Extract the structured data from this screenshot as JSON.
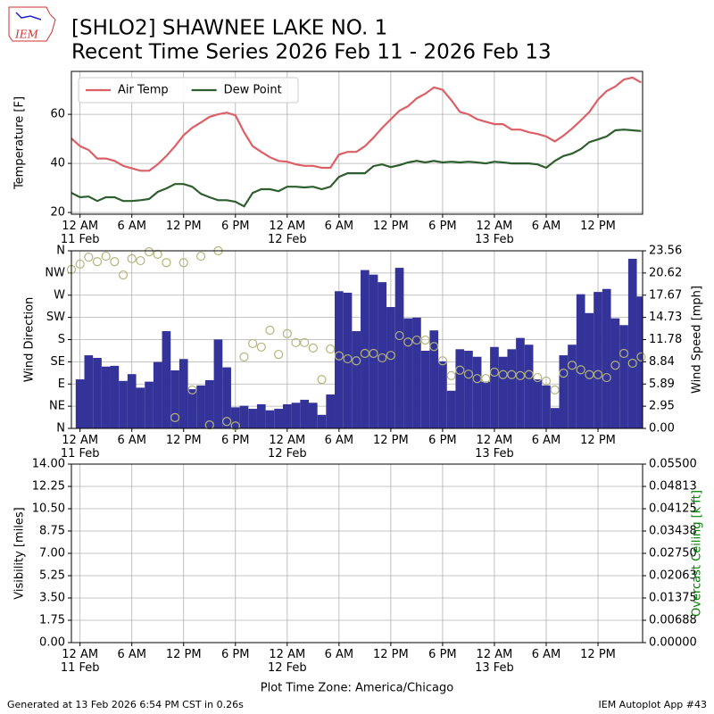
{
  "header": {
    "logo_text": "IEM",
    "title": "[SHLO2] SHAWNEE LAKE NO. 1",
    "subtitle": "Recent Time Series 2026 Feb 11 - 2026 Feb 13"
  },
  "footer": {
    "generated": "Generated at 13 Feb 2026 6:54 PM CST in 0.26s",
    "app": "IEM Autoplot App #43"
  },
  "chart_data": [
    {
      "type": "line",
      "ylabel": "Temperature [F]",
      "grid": true,
      "legend": "upper left",
      "xlim": [
        "10 Feb 23:00",
        "13 Feb 17:10"
      ],
      "xticks": [
        {
          "value": "11 Feb 00:00",
          "label": "12 AM\n11 Feb"
        },
        {
          "value": "11 Feb 06:00",
          "label": "6 AM"
        },
        {
          "value": "11 Feb 12:00",
          "label": "12 PM"
        },
        {
          "value": "11 Feb 18:00",
          "label": "6 PM"
        },
        {
          "value": "12 Feb 00:00",
          "label": "12 AM\n12 Feb"
        },
        {
          "value": "12 Feb 06:00",
          "label": "6 AM"
        },
        {
          "value": "12 Feb 12:00",
          "label": "12 PM"
        },
        {
          "value": "12 Feb 18:00",
          "label": "6 PM"
        },
        {
          "value": "13 Feb 00:00",
          "label": "12 AM\n13 Feb"
        },
        {
          "value": "13 Feb 06:00",
          "label": "6 AM"
        },
        {
          "value": "13 Feb 12:00",
          "label": "12 PM"
        }
      ],
      "ylim": [
        19.3,
        77.5
      ],
      "yticks": [
        20,
        40,
        60
      ],
      "x": [
        "10 Feb 23:00",
        "11 Feb 00:00",
        "11 Feb 01:00",
        "11 Feb 02:00",
        "11 Feb 03:00",
        "11 Feb 04:00",
        "11 Feb 05:00",
        "11 Feb 06:00",
        "11 Feb 07:00",
        "11 Feb 08:00",
        "11 Feb 09:00",
        "11 Feb 10:00",
        "11 Feb 11:00",
        "11 Feb 12:00",
        "11 Feb 13:00",
        "11 Feb 14:00",
        "11 Feb 15:00",
        "11 Feb 16:00",
        "11 Feb 17:00",
        "11 Feb 18:00",
        "11 Feb 19:00",
        "11 Feb 20:00",
        "11 Feb 21:00",
        "11 Feb 22:00",
        "11 Feb 23:00",
        "12 Feb 00:00",
        "12 Feb 01:00",
        "12 Feb 02:00",
        "12 Feb 03:00",
        "12 Feb 04:00",
        "12 Feb 05:00",
        "12 Feb 06:00",
        "12 Feb 07:00",
        "12 Feb 08:00",
        "12 Feb 09:00",
        "12 Feb 10:00",
        "12 Feb 11:00",
        "12 Feb 12:00",
        "12 Feb 13:00",
        "12 Feb 14:00",
        "12 Feb 15:00",
        "12 Feb 16:00",
        "12 Feb 17:00",
        "12 Feb 18:00",
        "12 Feb 19:00",
        "12 Feb 20:00",
        "12 Feb 21:00",
        "12 Feb 22:00",
        "12 Feb 23:00",
        "13 Feb 00:00",
        "13 Feb 01:00",
        "13 Feb 02:00",
        "13 Feb 03:00",
        "13 Feb 04:00",
        "13 Feb 05:00",
        "13 Feb 06:00",
        "13 Feb 07:00",
        "13 Feb 08:00",
        "13 Feb 09:00",
        "13 Feb 10:00",
        "13 Feb 11:00",
        "13 Feb 12:00",
        "13 Feb 13:00",
        "13 Feb 14:00",
        "13 Feb 15:00",
        "13 Feb 16:00",
        "13 Feb 17:00"
      ],
      "series": [
        {
          "name": "Air Temp",
          "color": "#dd5f66",
          "values": [
            50.2,
            47,
            45.5,
            42,
            42,
            41,
            39,
            38,
            37,
            37,
            39.6,
            43,
            47,
            51.5,
            54.5,
            56.7,
            59,
            60,
            60.7,
            59.6,
            52.7,
            47,
            44.7,
            42.5,
            41,
            40.7,
            39.6,
            39,
            39,
            38.2,
            38.2,
            43.6,
            44.7,
            44.7,
            47,
            50.5,
            54.5,
            58,
            61.5,
            63.3,
            66.5,
            68.4,
            71,
            70,
            65.8,
            61,
            60,
            58,
            57,
            56,
            56,
            53.8,
            53.8,
            52.7,
            52,
            51,
            49,
            51.3,
            54.2,
            57.5,
            61,
            66,
            69.5,
            71.3,
            74.2,
            75,
            73
          ]
        },
        {
          "name": "Dew Point",
          "color": "#2e5e2e",
          "values": [
            28,
            26.2,
            26.5,
            24.7,
            26.2,
            26.2,
            24.7,
            24.7,
            25,
            25.5,
            28.4,
            29.8,
            31.6,
            31.6,
            30.5,
            27.6,
            26.2,
            25,
            25,
            24.4,
            22.5,
            28,
            29.5,
            29.5,
            28.7,
            30.5,
            30.5,
            30.2,
            30.5,
            29.5,
            30.5,
            34.5,
            36,
            36,
            36,
            38.9,
            39.6,
            38.5,
            39.3,
            40.4,
            41,
            40.4,
            41,
            40.4,
            40.7,
            40.4,
            40.7,
            40.4,
            40,
            40.7,
            40.4,
            40,
            40,
            40,
            39.6,
            38.2,
            41,
            43,
            44,
            45.8,
            48.7,
            49.8,
            51,
            53.5,
            53.8,
            53.5,
            53.2
          ]
        }
      ]
    },
    {
      "type": "wind",
      "ylabel": "Wind Direction",
      "y2label": "Wind Speed [mph]",
      "grid": true,
      "xlim": [
        "10 Feb 23:00",
        "13 Feb 17:10"
      ],
      "xticks": [
        {
          "value": "11 Feb 00:00",
          "label": "12 AM\n11 Feb"
        },
        {
          "value": "11 Feb 06:00",
          "label": "6 AM"
        },
        {
          "value": "11 Feb 12:00",
          "label": "12 PM"
        },
        {
          "value": "11 Feb 18:00",
          "label": "6 PM"
        },
        {
          "value": "12 Feb 00:00",
          "label": "12 AM\n12 Feb"
        },
        {
          "value": "12 Feb 06:00",
          "label": "6 AM"
        },
        {
          "value": "12 Feb 12:00",
          "label": "12 PM"
        },
        {
          "value": "12 Feb 18:00",
          "label": "6 PM"
        },
        {
          "value": "13 Feb 00:00",
          "label": "12 AM\n13 Feb"
        },
        {
          "value": "13 Feb 06:00",
          "label": "6 AM"
        },
        {
          "value": "13 Feb 12:00",
          "label": "12 PM"
        }
      ],
      "ylim": [
        0,
        360
      ],
      "yticks": [
        {
          "value": 0,
          "label": "N"
        },
        {
          "value": 45,
          "label": "NE"
        },
        {
          "value": 90,
          "label": "E"
        },
        {
          "value": 135,
          "label": "SE"
        },
        {
          "value": 180,
          "label": "S"
        },
        {
          "value": 225,
          "label": "SW"
        },
        {
          "value": 270,
          "label": "W"
        },
        {
          "value": 315,
          "label": "NW"
        },
        {
          "value": 360,
          "label": "N"
        }
      ],
      "y2lim": [
        0,
        23.56
      ],
      "y2ticks": [
        {
          "value": 0,
          "label": "0.00"
        },
        {
          "value": 2.945,
          "label": "2.95"
        },
        {
          "value": 5.89,
          "label": "5.89"
        },
        {
          "value": 8.835,
          "label": "8.84"
        },
        {
          "value": 11.78,
          "label": "11.78"
        },
        {
          "value": 14.725,
          "label": "14.73"
        },
        {
          "value": 17.67,
          "label": "17.67"
        },
        {
          "value": 20.615,
          "label": "20.62"
        },
        {
          "value": 23.56,
          "label": "23.56"
        }
      ],
      "x": [
        "10 Feb 23:00",
        "11 Feb 00:00",
        "11 Feb 01:00",
        "11 Feb 02:00",
        "11 Feb 03:00",
        "11 Feb 04:00",
        "11 Feb 05:00",
        "11 Feb 06:00",
        "11 Feb 07:00",
        "11 Feb 08:00",
        "11 Feb 09:00",
        "11 Feb 10:00",
        "11 Feb 11:00",
        "11 Feb 12:00",
        "11 Feb 13:00",
        "11 Feb 14:00",
        "11 Feb 15:00",
        "11 Feb 16:00",
        "11 Feb 17:00",
        "11 Feb 18:00",
        "11 Feb 19:00",
        "11 Feb 20:00",
        "11 Feb 21:00",
        "11 Feb 22:00",
        "11 Feb 23:00",
        "12 Feb 00:00",
        "12 Feb 01:00",
        "12 Feb 02:00",
        "12 Feb 03:00",
        "12 Feb 04:00",
        "12 Feb 05:00",
        "12 Feb 06:00",
        "12 Feb 07:00",
        "12 Feb 08:00",
        "12 Feb 09:00",
        "12 Feb 10:00",
        "12 Feb 11:00",
        "12 Feb 12:00",
        "12 Feb 13:00",
        "12 Feb 14:00",
        "12 Feb 15:00",
        "12 Feb 16:00",
        "12 Feb 17:00",
        "12 Feb 18:00",
        "12 Feb 19:00",
        "12 Feb 20:00",
        "12 Feb 21:00",
        "12 Feb 22:00",
        "12 Feb 23:00",
        "13 Feb 00:00",
        "13 Feb 01:00",
        "13 Feb 02:00",
        "13 Feb 03:00",
        "13 Feb 04:00",
        "13 Feb 05:00",
        "13 Feb 06:00",
        "13 Feb 07:00",
        "13 Feb 08:00",
        "13 Feb 09:00",
        "13 Feb 10:00",
        "13 Feb 11:00",
        "13 Feb 12:00",
        "13 Feb 13:00",
        "13 Feb 14:00",
        "13 Feb 15:00",
        "13 Feb 16:00",
        "13 Feb 17:00"
      ],
      "series": [
        {
          "type": "bar",
          "axis": "y2",
          "color": "#333399",
          "values": [
            null,
            6.5,
            9.7,
            9.35,
            8.2,
            8.3,
            6.3,
            7.2,
            5.4,
            6.2,
            8.8,
            12.9,
            7.7,
            9.2,
            5.2,
            5.7,
            6.4,
            11.8,
            8.1,
            2.8,
            3,
            2.6,
            3.2,
            2.4,
            2.6,
            3.2,
            3.4,
            3.8,
            3.4,
            1.8,
            4.5,
            18.2,
            18,
            12.9,
            21,
            20.4,
            19.4,
            16.1,
            21.3,
            14.6,
            14.7,
            10.3,
            13,
            8.9,
            5,
            10.5,
            10.3,
            9.5,
            6.2,
            10.8,
            9.5,
            10.5,
            12,
            11.1,
            6.5,
            5.7,
            2.7,
            9.7,
            11.1,
            17.8,
            15.3,
            18.1,
            18.5,
            14.6,
            13.7,
            22.5,
            17.5
          ]
        },
        {
          "type": "scatter",
          "color": "#b3b57a",
          "values": [
            322,
            333,
            347,
            338,
            349,
            338,
            311,
            344,
            340,
            358,
            353,
            336,
            22,
            336,
            78,
            349,
            7,
            360,
            14,
            5,
            145,
            172,
            165,
            199,
            150,
            192,
            174,
            174,
            163,
            99,
            161,
            147,
            141,
            137,
            152,
            152,
            143,
            148,
            188,
            175,
            179,
            179,
            166,
            137,
            107,
            118,
            110,
            101,
            101,
            114,
            109,
            109,
            107,
            109,
            103,
            96,
            78,
            112,
            128,
            119,
            109,
            109,
            103,
            128,
            152,
            132,
            145
          ]
        }
      ]
    },
    {
      "type": "line",
      "ylabel": "Visibility [miles]",
      "y2label": "Overcast Ceiling [k ft]",
      "y2label_color": "green",
      "grid": true,
      "xlabel": "Plot Time Zone: America/Chicago",
      "xlim": [
        "10 Feb 23:00",
        "13 Feb 17:10"
      ],
      "xticks": [
        {
          "value": "11 Feb 00:00",
          "label": "12 AM\n11 Feb"
        },
        {
          "value": "11 Feb 06:00",
          "label": "6 AM"
        },
        {
          "value": "11 Feb 12:00",
          "label": "12 PM"
        },
        {
          "value": "11 Feb 18:00",
          "label": "6 PM"
        },
        {
          "value": "12 Feb 00:00",
          "label": "12 AM\n12 Feb"
        },
        {
          "value": "12 Feb 06:00",
          "label": "6 AM"
        },
        {
          "value": "12 Feb 12:00",
          "label": "12 PM"
        },
        {
          "value": "12 Feb 18:00",
          "label": "6 PM"
        },
        {
          "value": "13 Feb 00:00",
          "label": "12 AM\n13 Feb"
        },
        {
          "value": "13 Feb 06:00",
          "label": "6 AM"
        },
        {
          "value": "13 Feb 12:00",
          "label": "12 PM"
        }
      ],
      "ylim": [
        0,
        14
      ],
      "yticks": [
        {
          "value": 0,
          "label": "0.00"
        },
        {
          "value": 1.75,
          "label": "1.75"
        },
        {
          "value": 3.5,
          "label": "3.50"
        },
        {
          "value": 5.25,
          "label": "5.25"
        },
        {
          "value": 7,
          "label": "7.00"
        },
        {
          "value": 8.75,
          "label": "8.75"
        },
        {
          "value": 10.5,
          "label": "10.50"
        },
        {
          "value": 12.25,
          "label": "12.25"
        },
        {
          "value": 14,
          "label": "14.00"
        }
      ],
      "y2lim": [
        0,
        0.055
      ],
      "y2ticks": [
        {
          "value": 0,
          "label": "0.00000"
        },
        {
          "value": 0.006875,
          "label": "0.00688"
        },
        {
          "value": 0.01375,
          "label": "0.01375"
        },
        {
          "value": 0.020625,
          "label": "0.02063"
        },
        {
          "value": 0.0275,
          "label": "0.02750"
        },
        {
          "value": 0.034375,
          "label": "0.03438"
        },
        {
          "value": 0.04125,
          "label": "0.04125"
        },
        {
          "value": 0.048125,
          "label": "0.04813"
        },
        {
          "value": 0.055,
          "label": "0.05500"
        }
      ],
      "series": []
    }
  ]
}
